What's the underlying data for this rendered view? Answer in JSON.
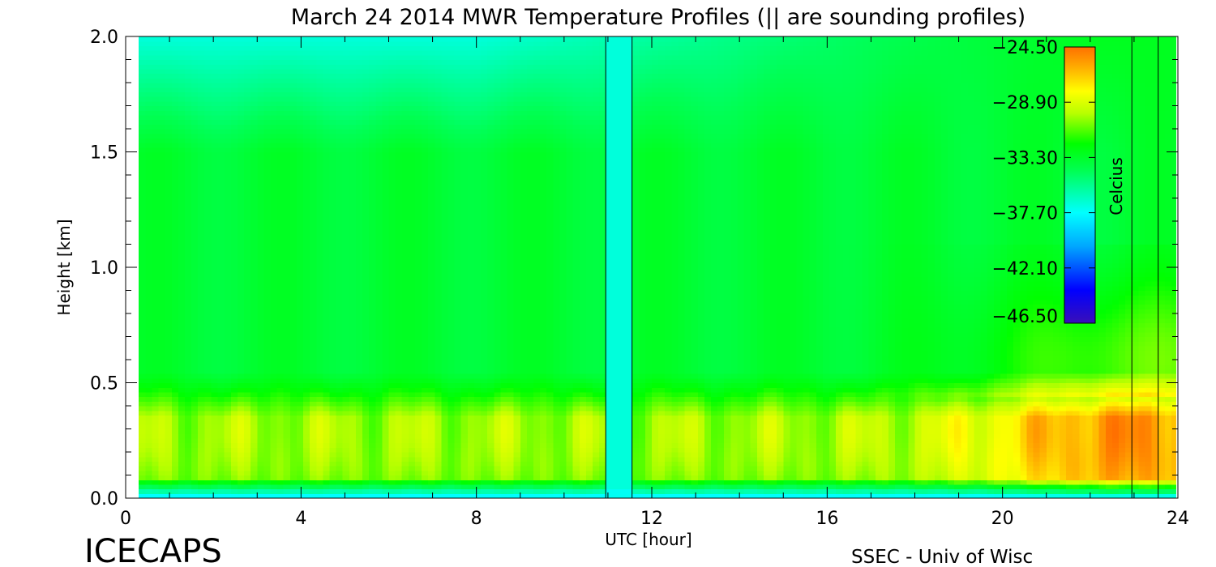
{
  "chart_data": {
    "type": "heatmap",
    "title": "March 24 2014 MWR Temperature Profiles (|| are sounding profiles)",
    "xlabel": "UTC [hour]",
    "ylabel": "Height [km]",
    "xlim": [
      0,
      24
    ],
    "ylim": [
      0,
      2.0
    ],
    "x_ticks": [
      "0",
      "4",
      "8",
      "12",
      "16",
      "20",
      "24"
    ],
    "y_ticks": [
      "0.0",
      "0.5",
      "1.0",
      "1.5",
      "2.0"
    ],
    "colorbar": {
      "label": "Celcius",
      "ticks": [
        "-24.50",
        "-28.90",
        "-33.30",
        "-37.70",
        "-42.10",
        "-46.50"
      ],
      "range": [
        -46.5,
        -24.5
      ]
    },
    "data_coverage_hours": [
      0.3,
      23.95
    ],
    "data_gap_hours": [
      11.0,
      11.5
    ],
    "sounding_times_hours": [
      10.95,
      11.55,
      22.95,
      23.55
    ],
    "field_description_celsius": {
      "surface_layer_0_to_0.05km": -38.5,
      "boundary_layer_0.1_to_0.5km_daytime": -30.0,
      "boundary_layer_0.1_to_0.5km_late_evening": -25.5,
      "mid_layer_1.0_to_1.5km": -33.5,
      "upper_layer_2.0km_early": -37.0,
      "upper_layer_2.0km_late": -33.0
    }
  },
  "labels": {
    "left_logo": "ICECAPS",
    "right_credit": "SSEC - Univ of Wisc"
  }
}
